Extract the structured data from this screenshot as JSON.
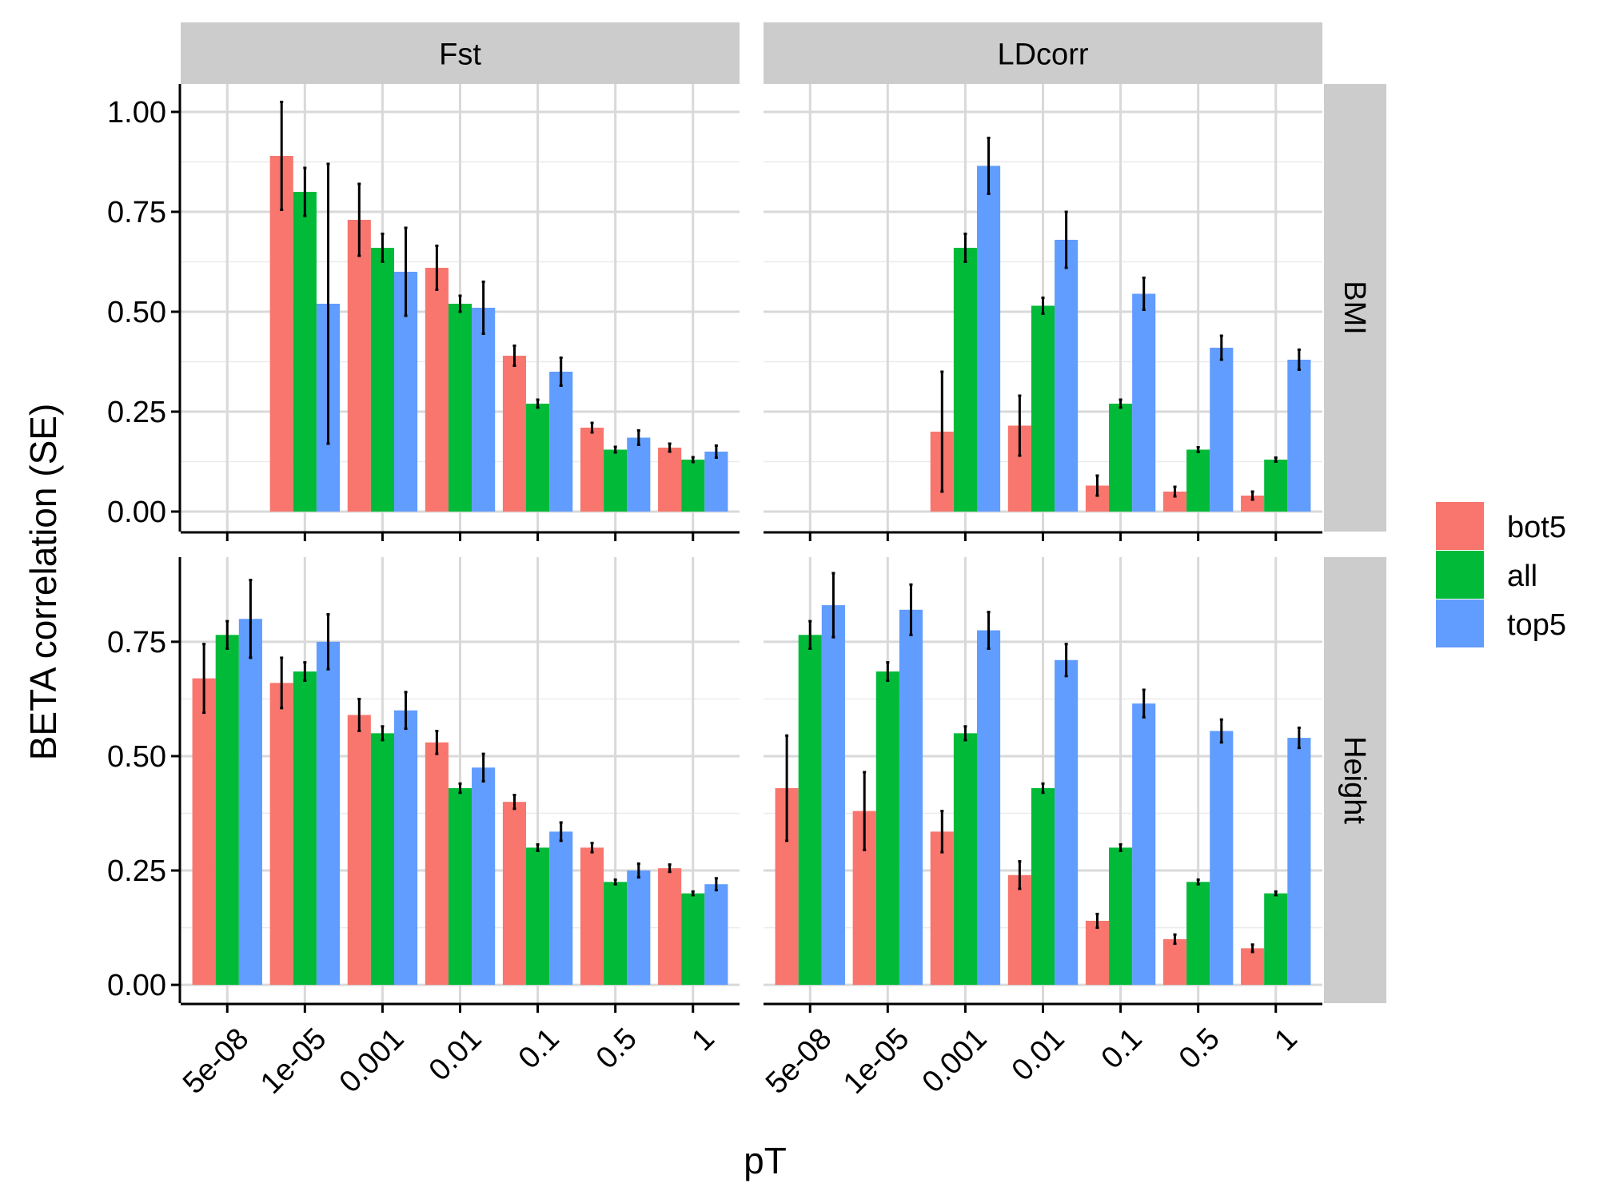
{
  "chart_data": {
    "type": "bar",
    "xlabel": "pT",
    "ylabel": "BETA correlation (SE)",
    "categories": [
      "5e-08",
      "1e-05",
      "0.001",
      "0.01",
      "0.1",
      "0.5",
      "1"
    ],
    "column_facets": [
      "Fst",
      "LDcorr"
    ],
    "row_facets": [
      "BMI",
      "Height"
    ],
    "legend": {
      "position": "right",
      "entries": [
        {
          "name": "bot5",
          "color": "#F8766D"
        },
        {
          "name": "all",
          "color": "#00BA38"
        },
        {
          "name": "top5",
          "color": "#619CFF"
        }
      ]
    },
    "grid": true,
    "panels": [
      {
        "row": "BMI",
        "col": "Fst",
        "ylim": [
          -0.05,
          1.07
        ],
        "yticks": [
          0.0,
          0.25,
          0.5,
          0.75,
          1.0
        ],
        "ytick_labels": [
          "0.00",
          "0.25",
          "0.50",
          "0.75",
          "1.00"
        ],
        "series": [
          {
            "name": "bot5",
            "values": [
              null,
              0.89,
              0.73,
              0.61,
              0.39,
              0.21,
              0.16
            ],
            "se": [
              null,
              0.135,
              0.09,
              0.055,
              0.025,
              0.012,
              0.01
            ]
          },
          {
            "name": "all",
            "values": [
              null,
              0.8,
              0.66,
              0.52,
              0.27,
              0.155,
              0.13
            ],
            "se": [
              null,
              0.06,
              0.035,
              0.02,
              0.01,
              0.007,
              0.006
            ]
          },
          {
            "name": "top5",
            "values": [
              null,
              0.52,
              0.6,
              0.51,
              0.35,
              0.185,
              0.15
            ],
            "se": [
              null,
              0.35,
              0.11,
              0.065,
              0.035,
              0.018,
              0.015
            ]
          }
        ]
      },
      {
        "row": "BMI",
        "col": "LDcorr",
        "ylim": [
          -0.05,
          1.07
        ],
        "yticks": [
          0.0,
          0.25,
          0.5,
          0.75,
          1.0
        ],
        "ytick_labels": [
          "0.00",
          "0.25",
          "0.50",
          "0.75",
          "1.00"
        ],
        "series": [
          {
            "name": "bot5",
            "values": [
              null,
              null,
              0.2,
              0.215,
              0.065,
              0.05,
              0.04
            ],
            "se": [
              null,
              null,
              0.15,
              0.075,
              0.025,
              0.012,
              0.01
            ]
          },
          {
            "name": "all",
            "values": [
              null,
              null,
              0.66,
              0.515,
              0.27,
              0.155,
              0.13
            ],
            "se": [
              null,
              null,
              0.035,
              0.02,
              0.01,
              0.006,
              0.005
            ]
          },
          {
            "name": "top5",
            "values": [
              null,
              null,
              0.865,
              0.68,
              0.545,
              0.41,
              0.38
            ],
            "se": [
              null,
              null,
              0.07,
              0.07,
              0.04,
              0.03,
              0.025
            ]
          }
        ]
      },
      {
        "row": "Height",
        "col": "Fst",
        "ylim": [
          -0.04,
          0.935
        ],
        "yticks": [
          0.0,
          0.25,
          0.5,
          0.75
        ],
        "ytick_labels": [
          "0.00",
          "0.25",
          "0.50",
          "0.75"
        ],
        "series": [
          {
            "name": "bot5",
            "values": [
              0.67,
              0.66,
              0.59,
              0.53,
              0.4,
              0.3,
              0.255
            ],
            "se": [
              0.075,
              0.055,
              0.035,
              0.025,
              0.015,
              0.01,
              0.008
            ]
          },
          {
            "name": "all",
            "values": [
              0.765,
              0.685,
              0.55,
              0.43,
              0.3,
              0.225,
              0.2
            ],
            "se": [
              0.03,
              0.02,
              0.015,
              0.01,
              0.007,
              0.005,
              0.004
            ]
          },
          {
            "name": "top5",
            "values": [
              0.8,
              0.75,
              0.6,
              0.475,
              0.335,
              0.25,
              0.22
            ],
            "se": [
              0.085,
              0.06,
              0.04,
              0.03,
              0.02,
              0.015,
              0.013
            ]
          }
        ]
      },
      {
        "row": "Height",
        "col": "LDcorr",
        "ylim": [
          -0.04,
          0.935
        ],
        "yticks": [
          0.0,
          0.25,
          0.5,
          0.75
        ],
        "ytick_labels": [
          "0.00",
          "0.25",
          "0.50",
          "0.75"
        ],
        "series": [
          {
            "name": "bot5",
            "values": [
              0.43,
              0.38,
              0.335,
              0.24,
              0.14,
              0.1,
              0.08
            ],
            "se": [
              0.115,
              0.085,
              0.045,
              0.03,
              0.015,
              0.01,
              0.008
            ]
          },
          {
            "name": "all",
            "values": [
              0.765,
              0.685,
              0.55,
              0.43,
              0.3,
              0.225,
              0.2
            ],
            "se": [
              0.03,
              0.02,
              0.015,
              0.01,
              0.007,
              0.005,
              0.004
            ]
          },
          {
            "name": "top5",
            "values": [
              0.83,
              0.82,
              0.775,
              0.71,
              0.615,
              0.555,
              0.54
            ],
            "se": [
              0.07,
              0.055,
              0.04,
              0.035,
              0.03,
              0.025,
              0.022
            ]
          }
        ]
      }
    ]
  }
}
